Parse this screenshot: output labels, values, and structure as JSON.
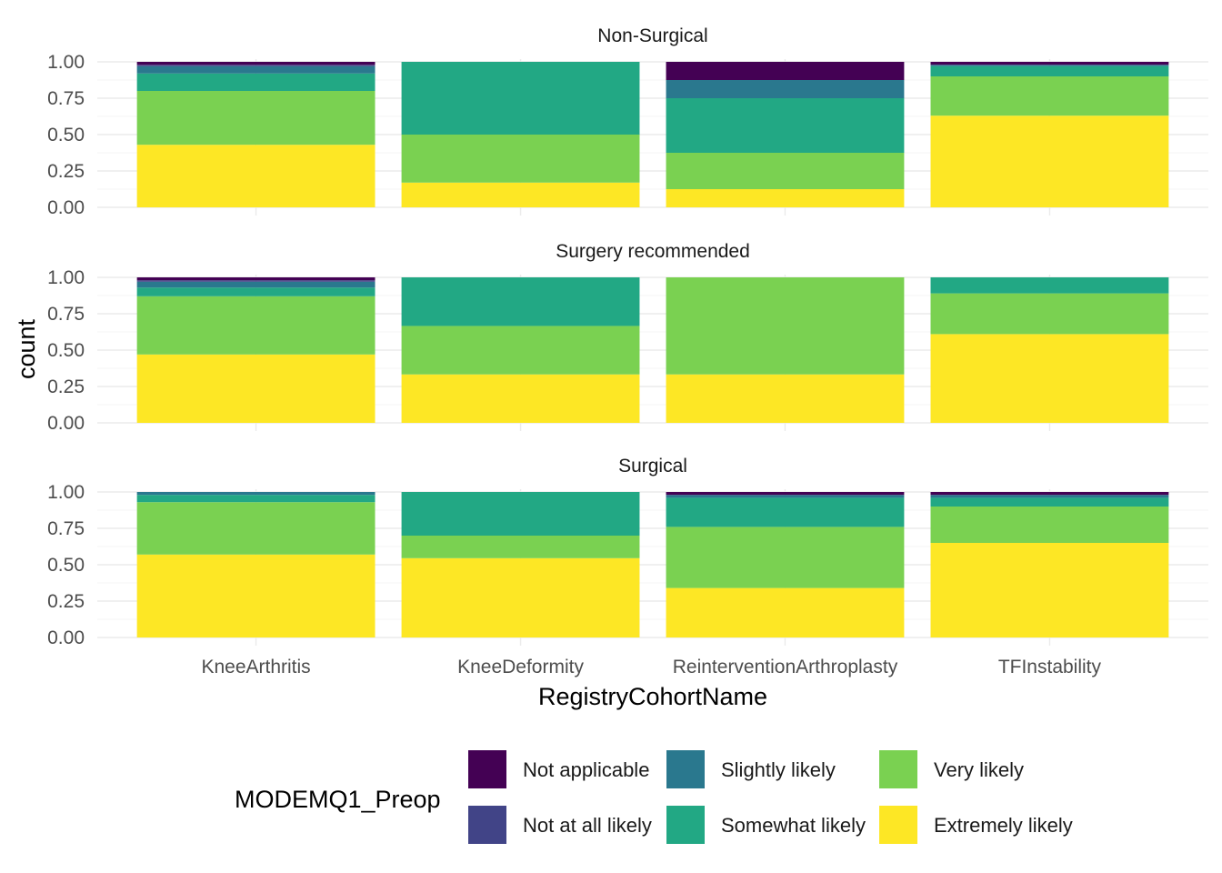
{
  "chart_data": {
    "type": "bar",
    "stacked": "fill",
    "xlabel": "RegistryCohortName",
    "ylabel": "count",
    "ylim": [
      0,
      1
    ],
    "yticks": [
      "0.00",
      "0.25",
      "0.50",
      "0.75",
      "1.00"
    ],
    "ytick_values": [
      0,
      0.25,
      0.5,
      0.75,
      1
    ],
    "categories": [
      "KneeArthritis",
      "KneeDeformity",
      "ReinterventionArthroplasty",
      "TFInstability"
    ],
    "grid": true,
    "legend": {
      "title": "MODEMQ1_Preop",
      "position": "bottom",
      "levels": [
        "Not applicable",
        "Not at all likely",
        "Slightly likely",
        "Somewhat likely",
        "Very likely",
        "Extremely likely"
      ],
      "colors": [
        "#440154",
        "#414487",
        "#2A788E",
        "#22A884",
        "#7AD151",
        "#FDE725"
      ]
    },
    "facets": [
      {
        "label": "Non-Surgical",
        "bars": [
          {
            "category": "KneeArthritis",
            "segments": {
              "Extremely likely": 0.43,
              "Very likely": 0.37,
              "Somewhat likely": 0.12,
              "Slightly likely": 0.05,
              "Not at all likely": 0.01,
              "Not applicable": 0.02
            }
          },
          {
            "category": "KneeDeformity",
            "segments": {
              "Extremely likely": 0.17,
              "Very likely": 0.33,
              "Somewhat likely": 0.5,
              "Slightly likely": 0.0,
              "Not at all likely": 0.0,
              "Not applicable": 0.0
            }
          },
          {
            "category": "ReinterventionArthroplasty",
            "segments": {
              "Extremely likely": 0.125,
              "Very likely": 0.25,
              "Somewhat likely": 0.375,
              "Slightly likely": 0.125,
              "Not at all likely": 0.0,
              "Not applicable": 0.125
            }
          },
          {
            "category": "TFInstability",
            "segments": {
              "Extremely likely": 0.63,
              "Very likely": 0.27,
              "Somewhat likely": 0.07,
              "Slightly likely": 0.01,
              "Not at all likely": 0.0,
              "Not applicable": 0.02
            }
          }
        ]
      },
      {
        "label": "Surgery recommended",
        "bars": [
          {
            "category": "KneeArthritis",
            "segments": {
              "Extremely likely": 0.47,
              "Very likely": 0.4,
              "Somewhat likely": 0.06,
              "Slightly likely": 0.04,
              "Not at all likely": 0.01,
              "Not applicable": 0.02
            }
          },
          {
            "category": "KneeDeformity",
            "segments": {
              "Extremely likely": 0.333,
              "Very likely": 0.333,
              "Somewhat likely": 0.334,
              "Slightly likely": 0.0,
              "Not at all likely": 0.0,
              "Not applicable": 0.0
            }
          },
          {
            "category": "ReinterventionArthroplasty",
            "segments": {
              "Extremely likely": 0.333,
              "Very likely": 0.667,
              "Somewhat likely": 0.0,
              "Slightly likely": 0.0,
              "Not at all likely": 0.0,
              "Not applicable": 0.0
            }
          },
          {
            "category": "TFInstability",
            "segments": {
              "Extremely likely": 0.61,
              "Very likely": 0.28,
              "Somewhat likely": 0.11,
              "Slightly likely": 0.0,
              "Not at all likely": 0.0,
              "Not applicable": 0.0
            }
          }
        ]
      },
      {
        "label": "Surgical",
        "bars": [
          {
            "category": "KneeArthritis",
            "segments": {
              "Extremely likely": 0.57,
              "Very likely": 0.36,
              "Somewhat likely": 0.05,
              "Slightly likely": 0.02,
              "Not at all likely": 0.0,
              "Not applicable": 0.0
            }
          },
          {
            "category": "KneeDeformity",
            "segments": {
              "Extremely likely": 0.545,
              "Very likely": 0.155,
              "Somewhat likely": 0.3,
              "Slightly likely": 0.0,
              "Not at all likely": 0.0,
              "Not applicable": 0.0
            }
          },
          {
            "category": "ReinterventionArthroplasty",
            "segments": {
              "Extremely likely": 0.34,
              "Very likely": 0.42,
              "Somewhat likely": 0.2,
              "Slightly likely": 0.02,
              "Not at all likely": 0.0,
              "Not applicable": 0.02
            }
          },
          {
            "category": "TFInstability",
            "segments": {
              "Extremely likely": 0.65,
              "Very likely": 0.25,
              "Somewhat likely": 0.06,
              "Slightly likely": 0.02,
              "Not at all likely": 0.0,
              "Not applicable": 0.02
            }
          }
        ]
      }
    ]
  }
}
